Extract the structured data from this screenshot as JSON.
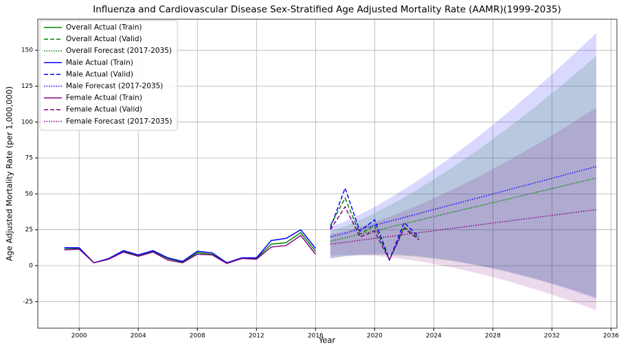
{
  "chart_data": {
    "type": "line",
    "title": "Influenza and Cardiovascular Disease Sex-Stratified Age Adjusted Mortality Rate (AAMR)(1999-2035)",
    "xlabel": "Year",
    "ylabel": "Age Adjusted Mortality Rate (per 1,000,000)",
    "xlim": [
      1997.2,
      2036.4
    ],
    "ylim": [
      -43.5,
      171.6
    ],
    "xticks": [
      2000,
      2004,
      2008,
      2012,
      2016,
      2020,
      2024,
      2028,
      2032,
      2036
    ],
    "yticks": [
      -25,
      0,
      25,
      50,
      75,
      100,
      125,
      150
    ],
    "grid": true,
    "legend": "upper left",
    "band_opacity": 0.15,
    "series": [
      {
        "name": "Overall Actual (Train)",
        "color": "#008000",
        "style": "solid",
        "x": [
          1999,
          2000,
          2001,
          2002,
          2003,
          2004,
          2005,
          2006,
          2007,
          2008,
          2009,
          2010,
          2011,
          2012,
          2013,
          2014,
          2015,
          2016
        ],
        "values": [
          12,
          12,
          2,
          4.5,
          10,
          7,
          10,
          5,
          2.5,
          9,
          8,
          2,
          5,
          5,
          15,
          16,
          23,
          10
        ]
      },
      {
        "name": "Overall Actual (Valid)",
        "color": "#008000",
        "style": "dashed",
        "x": [
          2017,
          2018,
          2019,
          2020,
          2021,
          2022,
          2023
        ],
        "values": [
          28,
          47,
          22,
          28,
          4,
          27,
          19
        ]
      },
      {
        "name": "Overall Forecast (2017-2035)",
        "color": "#008000",
        "style": "dotted",
        "x": [
          2017,
          2018,
          2019,
          2020,
          2021,
          2022,
          2023,
          2024,
          2025,
          2026,
          2027,
          2028,
          2029,
          2030,
          2031,
          2032,
          2033,
          2034,
          2035
        ],
        "values": [
          17,
          19.4,
          21.9,
          24.3,
          26.8,
          29.2,
          31.7,
          34.1,
          36.6,
          39,
          41.4,
          43.9,
          46.3,
          48.8,
          51.2,
          53.7,
          56.1,
          58.6,
          61
        ],
        "lower": [
          5,
          6.5,
          7.3,
          7.5,
          7.3,
          6.8,
          6.1,
          4.8,
          3.6,
          1.9,
          0,
          -2,
          -4.3,
          -6.8,
          -9.5,
          -12.3,
          -15.4,
          -18.6,
          -22
        ],
        "upper": [
          24,
          27.4,
          31.8,
          36.6,
          42,
          47.6,
          53.7,
          60.1,
          66.7,
          73.6,
          80.7,
          88.2,
          95.7,
          103.7,
          111.7,
          120.1,
          128.5,
          137.2,
          146
        ]
      },
      {
        "name": "Male Actual (Train)",
        "color": "#0000ff",
        "style": "solid",
        "x": [
          1999,
          2000,
          2001,
          2002,
          2003,
          2004,
          2005,
          2006,
          2007,
          2008,
          2009,
          2010,
          2011,
          2012,
          2013,
          2014,
          2015,
          2016
        ],
        "values": [
          12.5,
          12.5,
          2,
          5,
          10.5,
          7.5,
          10.5,
          5.5,
          3,
          10,
          9,
          2,
          5.5,
          5.5,
          17.5,
          19,
          25,
          12
        ]
      },
      {
        "name": "Male Actual (Valid)",
        "color": "#0000ff",
        "style": "dashed",
        "x": [
          2017,
          2018,
          2019,
          2020,
          2021,
          2022,
          2023
        ],
        "values": [
          26,
          54,
          24,
          32,
          4,
          30,
          20
        ]
      },
      {
        "name": "Male Forecast (2017-2035)",
        "color": "#0000ff",
        "style": "dotted",
        "x": [
          2017,
          2018,
          2019,
          2020,
          2021,
          2022,
          2023,
          2024,
          2025,
          2026,
          2027,
          2028,
          2029,
          2030,
          2031,
          2032,
          2033,
          2034,
          2035
        ],
        "values": [
          20,
          22.7,
          25.4,
          28.2,
          30.9,
          33.6,
          36.3,
          39.1,
          41.8,
          44.5,
          47.2,
          49.9,
          52.7,
          55.4,
          58.1,
          60.8,
          63.6,
          66.3,
          69
        ],
        "lower": [
          5,
          6.7,
          7.6,
          8,
          7.8,
          7.4,
          6.5,
          5.4,
          4,
          2.2,
          0.3,
          -1.9,
          -4.2,
          -6.9,
          -9.7,
          -12.8,
          -15.9,
          -19.4,
          -23
        ],
        "upper": [
          27,
          30.8,
          35.6,
          41,
          46.9,
          53.2,
          59.8,
          67,
          74.3,
          81.9,
          89.8,
          98,
          106.5,
          115.2,
          124.1,
          133.2,
          142.7,
          152.2,
          162
        ]
      },
      {
        "name": "Female Actual (Train)",
        "color": "#800080",
        "style": "solid",
        "x": [
          1999,
          2000,
          2001,
          2002,
          2003,
          2004,
          2005,
          2006,
          2007,
          2008,
          2009,
          2010,
          2011,
          2012,
          2013,
          2014,
          2015,
          2016
        ],
        "values": [
          11,
          11.5,
          2,
          4.5,
          9.5,
          6.5,
          9.5,
          4,
          2,
          8,
          7.5,
          1.5,
          5,
          4.5,
          13,
          14,
          21,
          8
        ]
      },
      {
        "name": "Female Actual (Valid)",
        "color": "#800080",
        "style": "dashed",
        "x": [
          2017,
          2018,
          2019,
          2020,
          2021,
          2022,
          2023
        ],
        "values": [
          25,
          41,
          20,
          24,
          4,
          26,
          18
        ]
      },
      {
        "name": "Female Forecast (2017-2035)",
        "color": "#800080",
        "style": "dotted",
        "x": [
          2017,
          2018,
          2019,
          2020,
          2021,
          2022,
          2023,
          2024,
          2025,
          2026,
          2027,
          2028,
          2029,
          2030,
          2031,
          2032,
          2033,
          2034,
          2035
        ],
        "values": [
          15,
          16.3,
          17.7,
          19,
          20.3,
          21.7,
          23,
          24.3,
          25.7,
          27,
          28.3,
          29.7,
          31,
          32.3,
          33.7,
          35,
          36.3,
          37.7,
          39
        ],
        "lower": [
          7,
          7.5,
          7.4,
          6.8,
          5.8,
          4.6,
          3.1,
          1.2,
          -0.7,
          -2.9,
          -5.4,
          -7.9,
          -10.7,
          -13.8,
          -16.8,
          -20.2,
          -23.7,
          -27.2,
          -31
        ],
        "upper": [
          22,
          24.1,
          27.1,
          30.4,
          34,
          38,
          42.3,
          46.9,
          51.6,
          56.7,
          61.8,
          67.3,
          72.8,
          78.6,
          84.6,
          90.7,
          96.9,
          103.5,
          110
        ]
      }
    ]
  }
}
